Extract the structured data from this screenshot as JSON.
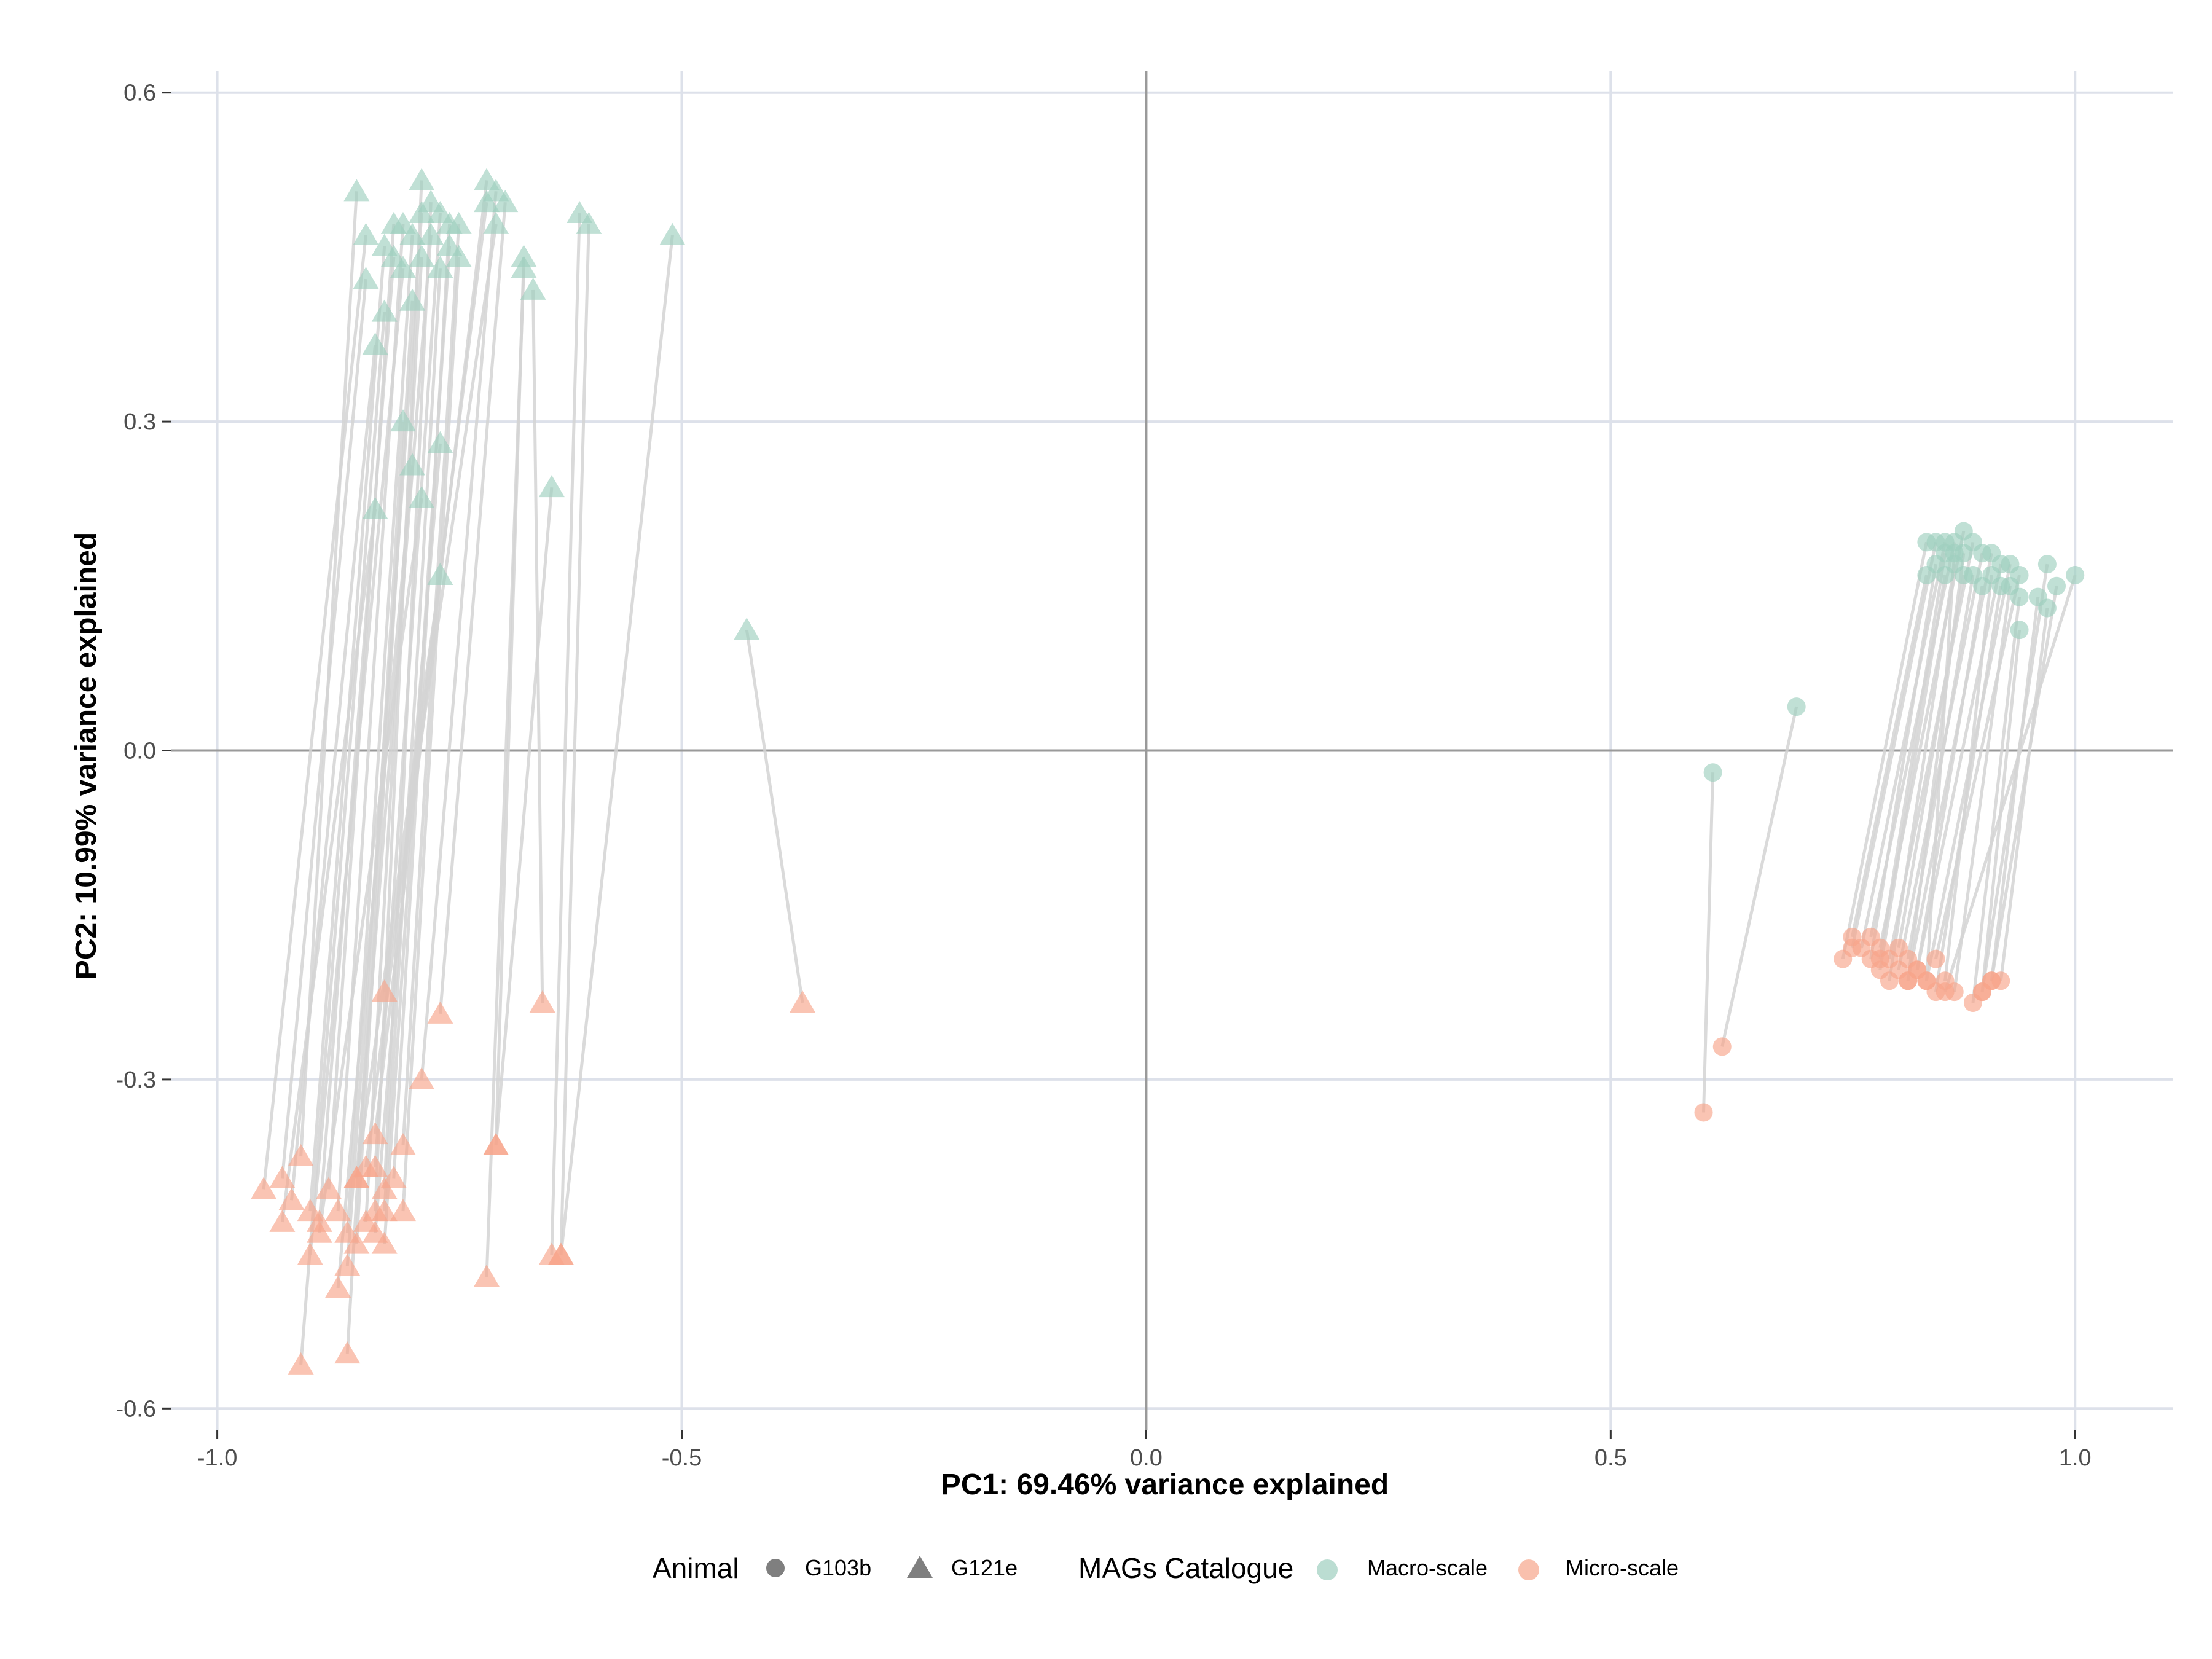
{
  "chart_data": {
    "type": "scatter",
    "title": "",
    "xlabel": "PC1: 69.46% variance explained",
    "ylabel": "PC2: 10.99% variance explained",
    "xlim": [
      -1.05,
      1.105
    ],
    "ylim": [
      -0.62,
      0.62
    ],
    "x_ticks": [
      -1.0,
      -0.5,
      0.0,
      0.5,
      1.0
    ],
    "x_tick_labels": [
      "-1.0",
      "-0.5",
      "0.0",
      "0.5",
      "1.0"
    ],
    "y_ticks": [
      -0.6,
      -0.3,
      0.0,
      0.3,
      0.6
    ],
    "y_tick_labels": [
      "-0.6",
      "-0.3",
      "0.0",
      "0.3",
      "0.6"
    ],
    "grid": true,
    "legend_position": "bottom",
    "colors": {
      "Macro-scale": "#9ecfbf",
      "Micro-scale": "#f7a58a",
      "segment": "#d3d3d3",
      "zero_line": "#9a9a9a",
      "grid": "#dde1ea",
      "legend_shape": "#7f7f7f"
    },
    "legend": {
      "shape": {
        "title": "Animal",
        "entries": [
          {
            "label": "G103b",
            "shape": "circle"
          },
          {
            "label": "G121e",
            "shape": "triangle"
          }
        ]
      },
      "color": {
        "title": "MAGs Catalogue",
        "entries": [
          {
            "label": "Macro-scale"
          },
          {
            "label": "Micro-scale"
          }
        ]
      }
    },
    "pairs": {
      "G121e": [
        [
          [
            -0.85,
            0.51
          ],
          [
            -0.91,
            -0.37
          ]
        ],
        [
          [
            -0.84,
            0.47
          ],
          [
            -0.95,
            -0.4
          ]
        ],
        [
          [
            -0.84,
            0.43
          ],
          [
            -0.93,
            -0.39
          ]
        ],
        [
          [
            -0.83,
            0.37
          ],
          [
            -0.92,
            -0.41
          ]
        ],
        [
          [
            -0.82,
            0.46
          ],
          [
            -0.9,
            -0.42
          ]
        ],
        [
          [
            -0.81,
            0.45
          ],
          [
            -0.89,
            -0.43
          ]
        ],
        [
          [
            -0.81,
            0.48
          ],
          [
            -0.88,
            -0.4
          ]
        ],
        [
          [
            -0.8,
            0.48
          ],
          [
            -0.87,
            -0.42
          ]
        ],
        [
          [
            -0.8,
            0.44
          ],
          [
            -0.9,
            -0.46
          ]
        ],
        [
          [
            -0.79,
            0.47
          ],
          [
            -0.86,
            -0.44
          ]
        ],
        [
          [
            -0.79,
            0.41
          ],
          [
            -0.85,
            -0.45
          ]
        ],
        [
          [
            -0.78,
            0.49
          ],
          [
            -0.86,
            -0.47
          ]
        ],
        [
          [
            -0.78,
            0.45
          ],
          [
            -0.84,
            -0.43
          ]
        ],
        [
          [
            -0.78,
            0.52
          ],
          [
            -0.83,
            -0.42
          ]
        ],
        [
          [
            -0.77,
            0.5
          ],
          [
            -0.82,
            -0.4
          ]
        ],
        [
          [
            -0.77,
            0.47
          ],
          [
            -0.85,
            -0.39
          ]
        ],
        [
          [
            -0.76,
            0.49
          ],
          [
            -0.83,
            -0.38
          ]
        ],
        [
          [
            -0.76,
            0.44
          ],
          [
            -0.82,
            -0.42
          ]
        ],
        [
          [
            -0.75,
            0.48
          ],
          [
            -0.81,
            -0.39
          ]
        ],
        [
          [
            -0.75,
            0.46
          ],
          [
            -0.82,
            -0.45
          ]
        ],
        [
          [
            -0.74,
            0.48
          ],
          [
            -0.8,
            -0.36
          ]
        ],
        [
          [
            -0.74,
            0.45
          ],
          [
            -0.8,
            -0.42
          ]
        ],
        [
          [
            -0.71,
            0.52
          ],
          [
            -0.83,
            -0.35
          ]
        ],
        [
          [
            -0.71,
            0.5
          ],
          [
            -0.84,
            -0.38
          ]
        ],
        [
          [
            -0.7,
            0.48
          ],
          [
            -0.82,
            -0.22
          ]
        ],
        [
          [
            -0.7,
            0.51
          ],
          [
            -0.78,
            -0.3
          ]
        ],
        [
          [
            -0.69,
            0.5
          ],
          [
            -0.76,
            -0.24
          ]
        ],
        [
          [
            -0.67,
            0.45
          ],
          [
            -0.7,
            -0.36
          ]
        ],
        [
          [
            -0.67,
            0.44
          ],
          [
            -0.71,
            -0.48
          ]
        ],
        [
          [
            -0.66,
            0.42
          ],
          [
            -0.65,
            -0.23
          ]
        ],
        [
          [
            -0.61,
            0.49
          ],
          [
            -0.64,
            -0.46
          ]
        ],
        [
          [
            -0.6,
            0.48
          ],
          [
            -0.63,
            -0.46
          ]
        ],
        [
          [
            -0.51,
            0.47
          ],
          [
            -0.63,
            -0.46
          ]
        ],
        [
          [
            -0.64,
            0.24
          ],
          [
            -0.7,
            -0.36
          ]
        ],
        [
          [
            -0.43,
            0.11
          ],
          [
            -0.37,
            -0.23
          ]
        ],
        [
          [
            -0.82,
            0.4
          ],
          [
            -0.91,
            -0.56
          ]
        ],
        [
          [
            -0.8,
            0.3
          ],
          [
            -0.86,
            -0.55
          ]
        ],
        [
          [
            -0.79,
            0.26
          ],
          [
            -0.87,
            -0.49
          ]
        ],
        [
          [
            -0.76,
            0.28
          ],
          [
            -0.83,
            -0.44
          ]
        ],
        [
          [
            -0.83,
            0.22
          ],
          [
            -0.93,
            -0.43
          ]
        ],
        [
          [
            -0.78,
            0.23
          ],
          [
            -0.89,
            -0.44
          ]
        ],
        [
          [
            -0.76,
            0.16
          ],
          [
            -0.85,
            -0.39
          ]
        ]
      ],
      "G103b": [
        [
          [
            0.84,
            0.19
          ],
          [
            0.75,
            -0.19
          ]
        ],
        [
          [
            0.85,
            0.19
          ],
          [
            0.76,
            -0.18
          ]
        ],
        [
          [
            0.86,
            0.19
          ],
          [
            0.77,
            -0.18
          ]
        ],
        [
          [
            0.87,
            0.19
          ],
          [
            0.78,
            -0.17
          ]
        ],
        [
          [
            0.88,
            0.2
          ],
          [
            0.79,
            -0.18
          ]
        ],
        [
          [
            0.89,
            0.19
          ],
          [
            0.8,
            -0.19
          ]
        ],
        [
          [
            0.9,
            0.18
          ],
          [
            0.81,
            -0.2
          ]
        ],
        [
          [
            0.91,
            0.18
          ],
          [
            0.82,
            -0.21
          ]
        ],
        [
          [
            0.92,
            0.17
          ],
          [
            0.83,
            -0.2
          ]
        ],
        [
          [
            0.93,
            0.17
          ],
          [
            0.84,
            -0.21
          ]
        ],
        [
          [
            0.94,
            0.16
          ],
          [
            0.85,
            -0.19
          ]
        ],
        [
          [
            0.84,
            0.16
          ],
          [
            0.76,
            -0.17
          ]
        ],
        [
          [
            0.85,
            0.17
          ],
          [
            0.78,
            -0.19
          ]
        ],
        [
          [
            0.86,
            0.16
          ],
          [
            0.79,
            -0.2
          ]
        ],
        [
          [
            0.87,
            0.17
          ],
          [
            0.8,
            -0.21
          ]
        ],
        [
          [
            0.88,
            0.16
          ],
          [
            0.81,
            -0.18
          ]
        ],
        [
          [
            0.89,
            0.16
          ],
          [
            0.82,
            -0.19
          ]
        ],
        [
          [
            0.9,
            0.15
          ],
          [
            0.83,
            -0.2
          ]
        ],
        [
          [
            0.91,
            0.16
          ],
          [
            0.86,
            -0.21
          ]
        ],
        [
          [
            0.92,
            0.15
          ],
          [
            0.85,
            -0.22
          ]
        ],
        [
          [
            0.93,
            0.15
          ],
          [
            0.87,
            -0.22
          ]
        ],
        [
          [
            0.94,
            0.14
          ],
          [
            0.89,
            -0.23
          ]
        ],
        [
          [
            0.94,
            0.11
          ],
          [
            0.9,
            -0.22
          ]
        ],
        [
          [
            0.96,
            0.14
          ],
          [
            0.91,
            -0.21
          ]
        ],
        [
          [
            0.97,
            0.17
          ],
          [
            0.9,
            -0.22
          ]
        ],
        [
          [
            0.98,
            0.15
          ],
          [
            0.91,
            -0.21
          ]
        ],
        [
          [
            0.97,
            0.13
          ],
          [
            0.92,
            -0.21
          ]
        ],
        [
          [
            1.0,
            0.16
          ],
          [
            0.86,
            -0.22
          ]
        ],
        [
          [
            0.87,
            0.18
          ],
          [
            0.84,
            -0.21
          ]
        ],
        [
          [
            0.88,
            0.18
          ],
          [
            0.82,
            -0.21
          ]
        ],
        [
          [
            0.86,
            0.18
          ],
          [
            0.79,
            -0.19
          ]
        ],
        [
          [
            0.61,
            -0.02
          ],
          [
            0.6,
            -0.33
          ]
        ],
        [
          [
            0.7,
            0.04
          ],
          [
            0.62,
            -0.27
          ]
        ]
      ]
    }
  }
}
